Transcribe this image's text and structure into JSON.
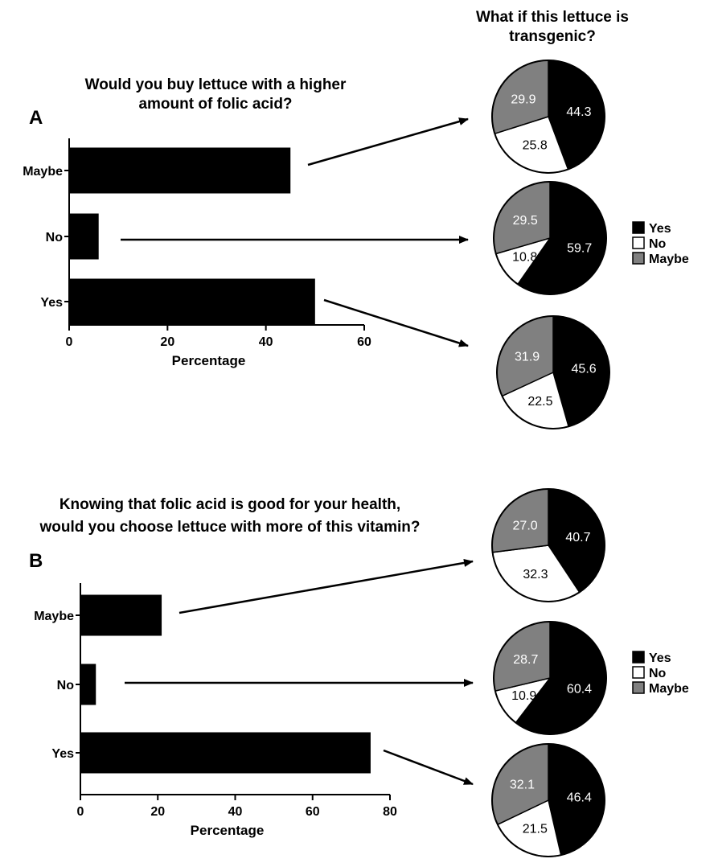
{
  "right_title": "What if this lettuce is transgenic?",
  "right_title_lines": [
    "What if this lettuce is",
    "transgenic?"
  ],
  "colors": {
    "yes": "#000000",
    "no": "#ffffff",
    "maybe": "#808080"
  },
  "chart_data": [
    {
      "type": "bar",
      "orientation": "horizontal",
      "panel_label": "A",
      "title": "Would you buy lettuce with a higher amount of folic acid?",
      "title_lines": [
        "Would you buy lettuce with a higher",
        "amount of folic acid?"
      ],
      "categories": [
        "Maybe",
        "No",
        "Yes"
      ],
      "values": [
        45,
        6,
        50
      ],
      "xlabel": "Percentage",
      "xlim": [
        0,
        60
      ],
      "xticks": [
        "0",
        "20",
        "40",
        "60"
      ]
    },
    {
      "type": "pie",
      "for_category": "Maybe",
      "legend": [
        "Yes",
        "No",
        "Maybe"
      ],
      "values": [
        44.3,
        25.8,
        29.9
      ],
      "labels": [
        "44.3",
        "25.8",
        "29.9"
      ]
    },
    {
      "type": "pie",
      "for_category": "No",
      "legend": [
        "Yes",
        "No",
        "Maybe"
      ],
      "values": [
        59.7,
        10.8,
        29.5
      ],
      "labels": [
        "59.7",
        "10.8",
        "29.5"
      ]
    },
    {
      "type": "pie",
      "for_category": "Yes",
      "legend": [
        "Yes",
        "No",
        "Maybe"
      ],
      "values": [
        45.6,
        22.5,
        31.9
      ],
      "labels": [
        "45.6",
        "22.5",
        "31.9"
      ]
    },
    {
      "type": "bar",
      "orientation": "horizontal",
      "panel_label": "B",
      "title": "Knowing that folic acid is good for your health, would you choose lettuce with more of this vitamin?",
      "title_lines": [
        "Knowing that folic acid is good for your health,",
        "would you choose lettuce with more of this vitamin?"
      ],
      "categories": [
        "Maybe",
        "No",
        "Yes"
      ],
      "values": [
        21,
        4,
        75
      ],
      "xlabel": "Percentage",
      "xlim": [
        0,
        80
      ],
      "xticks": [
        "0",
        "20",
        "40",
        "60",
        "80"
      ]
    },
    {
      "type": "pie",
      "for_category": "Maybe",
      "legend": [
        "Yes",
        "No",
        "Maybe"
      ],
      "values": [
        40.7,
        32.3,
        27.0
      ],
      "labels": [
        "40.7",
        "32.3",
        "27.0"
      ]
    },
    {
      "type": "pie",
      "for_category": "No",
      "legend": [
        "Yes",
        "No",
        "Maybe"
      ],
      "values": [
        60.4,
        10.9,
        28.7
      ],
      "labels": [
        "60.4",
        "10.9",
        "28.7"
      ]
    },
    {
      "type": "pie",
      "for_category": "Yes",
      "legend": [
        "Yes",
        "No",
        "Maybe"
      ],
      "values": [
        46.4,
        21.5,
        32.1
      ],
      "labels": [
        "46.4",
        "21.5",
        "32.1"
      ]
    }
  ]
}
